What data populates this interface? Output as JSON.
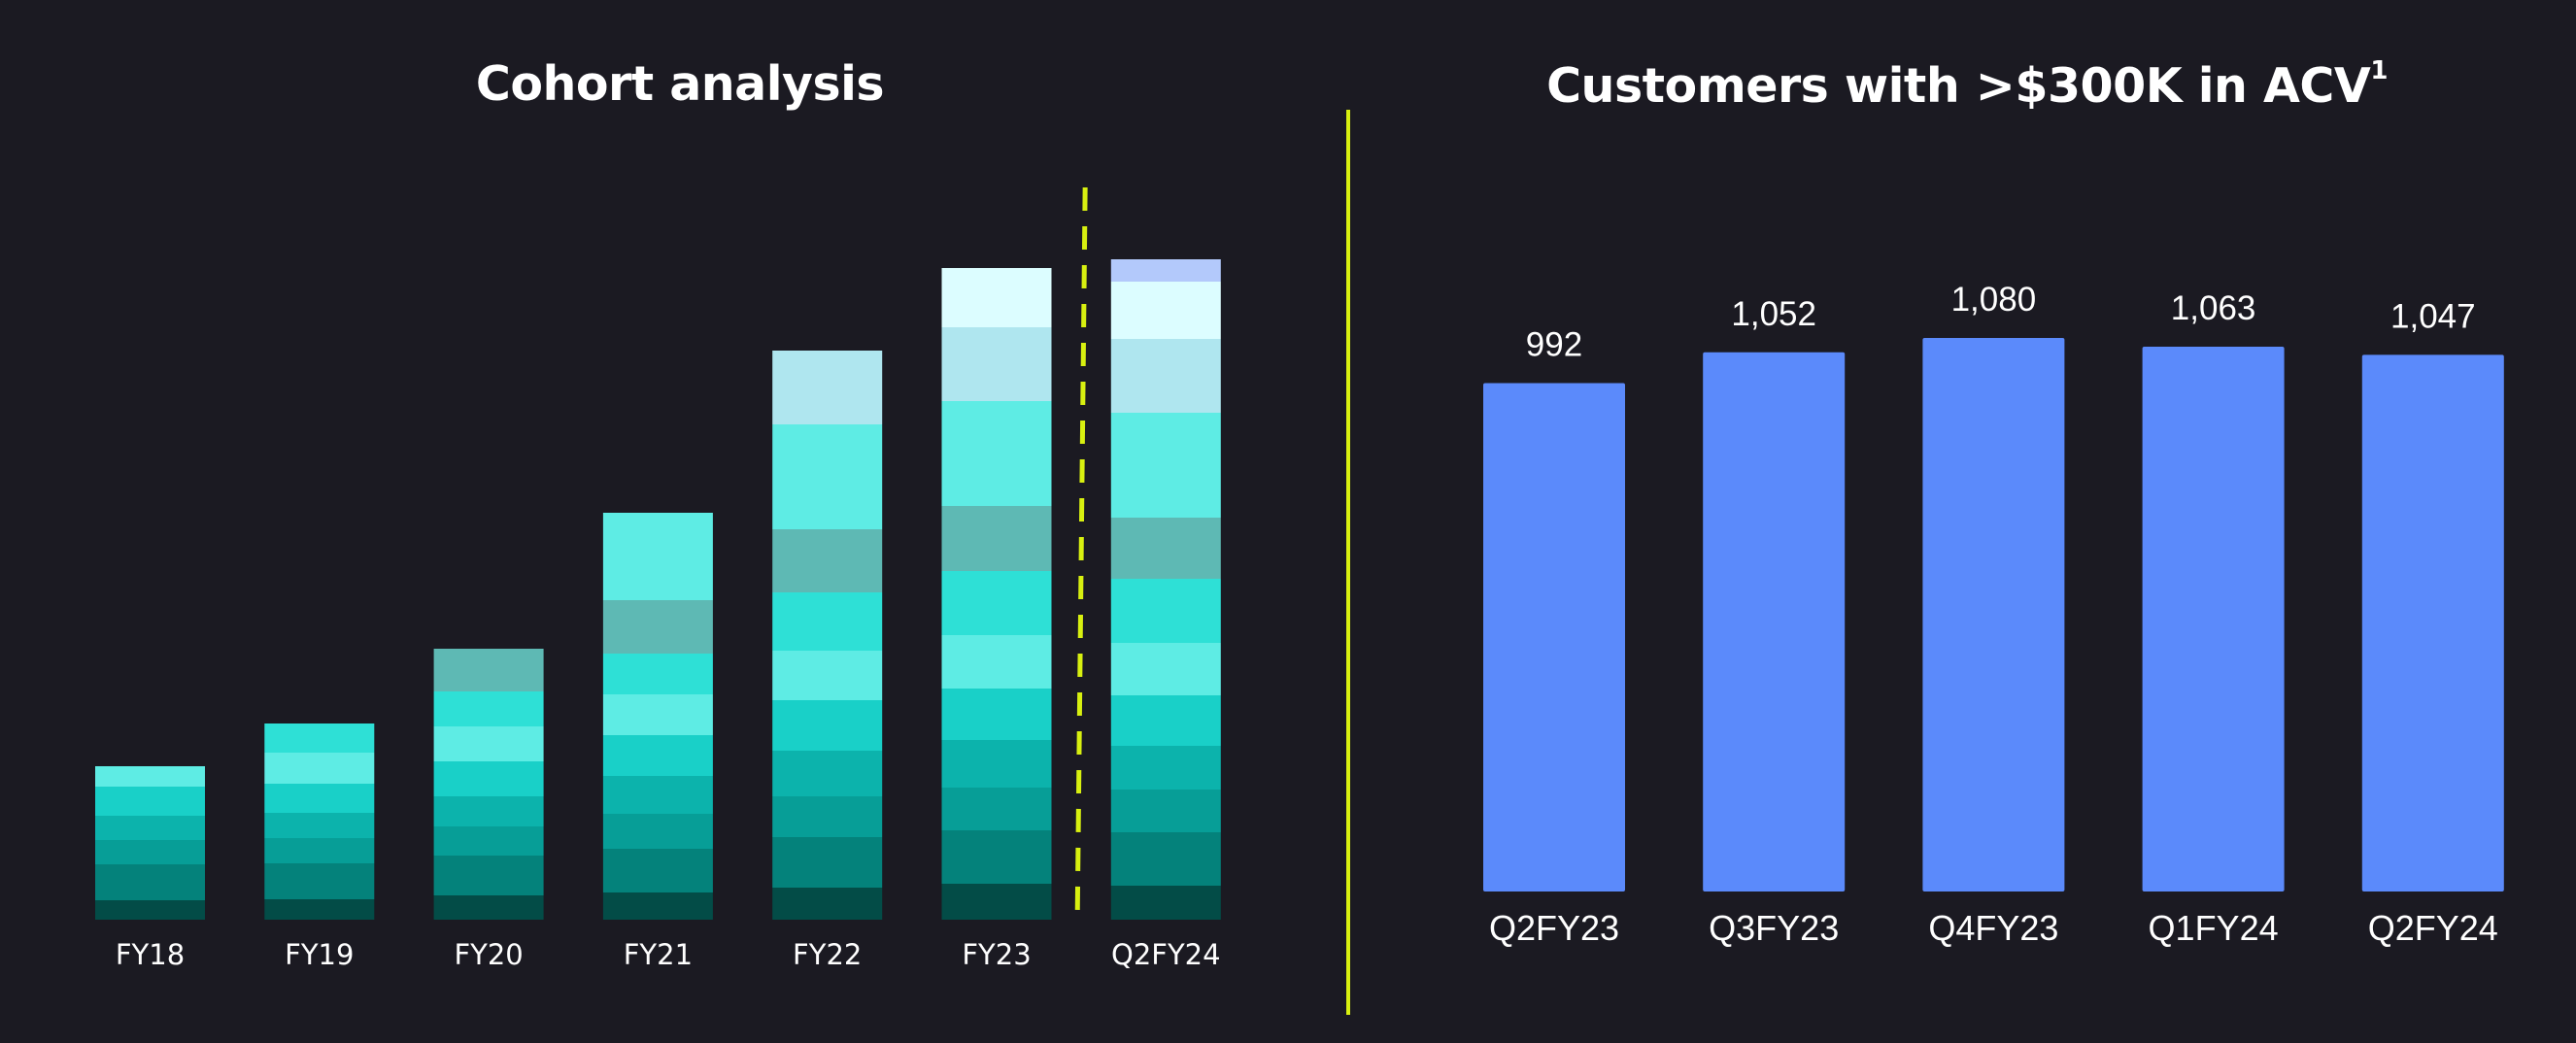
{
  "left_title": "Cohort analysis",
  "right_title": "Customers with >$300K in ACV",
  "right_title_footnote": "1",
  "colors": {
    "background": "#1b1a22",
    "divider": "#d8f010",
    "bar": "#5b8afb",
    "cohort_palette": [
      "#034c47",
      "#04827b",
      "#079e97",
      "#0cb3ac",
      "#19d0c8",
      "#5eece4",
      "#2ee0d6",
      "#5eb9b4",
      "#5eece4",
      "#afe6ef",
      "#dcfdff",
      "#b3c9fb"
    ]
  },
  "chart_data": [
    {
      "type": "bar",
      "stacked": true,
      "title": "Cohort analysis",
      "categories": [
        "FY18",
        "FY19",
        "FY20",
        "FY21",
        "FY22",
        "FY23",
        "Q2FY24"
      ],
      "y_units": "relative (no axis printed)",
      "series": [
        {
          "values": [
            20,
            21,
            25,
            28,
            33,
            37,
            35
          ]
        },
        {
          "values": [
            37,
            37,
            41,
            45,
            52,
            55,
            55
          ]
        },
        {
          "values": [
            25,
            26,
            30,
            36,
            42,
            44,
            44
          ]
        },
        {
          "values": [
            25,
            26,
            31,
            39,
            47,
            49,
            45
          ]
        },
        {
          "values": [
            30,
            30,
            36,
            42,
            52,
            53,
            52
          ]
        },
        {
          "values": [
            21,
            32,
            36,
            42,
            51,
            55,
            54
          ]
        },
        {
          "values": [
            0,
            30,
            36,
            42,
            60,
            66,
            66
          ]
        },
        {
          "values": [
            0,
            0,
            44,
            55,
            65,
            67,
            63
          ]
        },
        {
          "values": [
            0,
            0,
            0,
            90,
            108,
            108,
            108
          ]
        },
        {
          "values": [
            0,
            0,
            0,
            0,
            76,
            76,
            76
          ]
        },
        {
          "values": [
            0,
            0,
            0,
            0,
            0,
            61,
            59
          ]
        },
        {
          "values": [
            0,
            0,
            0,
            0,
            0,
            0,
            23
          ]
        }
      ],
      "annotations": [
        "dashed separator between FY23 and Q2FY24"
      ]
    },
    {
      "type": "bar",
      "title": "Customers with >$300K in ACV",
      "categories": [
        "Q2FY23",
        "Q3FY23",
        "Q4FY23",
        "Q1FY24",
        "Q2FY24"
      ],
      "values": [
        992,
        1052,
        1080,
        1063,
        1047
      ],
      "value_labels": [
        "992",
        "1,052",
        "1,080",
        "1,063",
        "1,047"
      ],
      "ylim": [
        0,
        1080
      ],
      "grid": false
    }
  ]
}
